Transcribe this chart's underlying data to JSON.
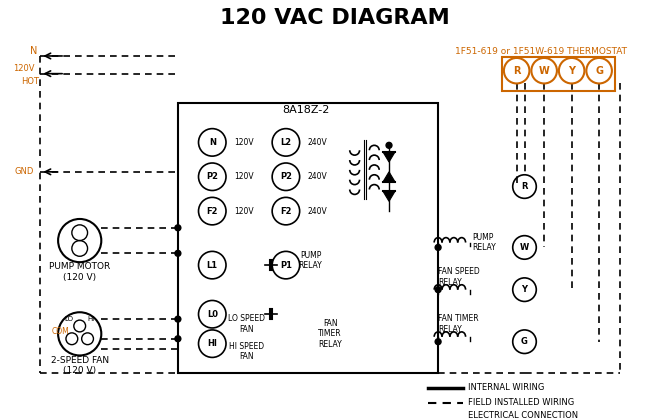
{
  "title": "120 VAC DIAGRAM",
  "title_fontsize": 16,
  "title_bold": true,
  "bg_color": "#ffffff",
  "text_color": "#000000",
  "orange_color": "#cc6600",
  "thermostat_label": "1F51-619 or 1F51W-619 THERMOSTAT",
  "controller_label": "8A18Z-2",
  "pump_motor_label": "PUMP MOTOR\n(120 V)",
  "fan_label": "2-SPEED FAN\n(120 V)",
  "legend_internal": "INTERNAL WIRING",
  "legend_field": "FIELD INSTALLED WIRING",
  "legend_elec": "ELECTRICAL CONNECTION"
}
